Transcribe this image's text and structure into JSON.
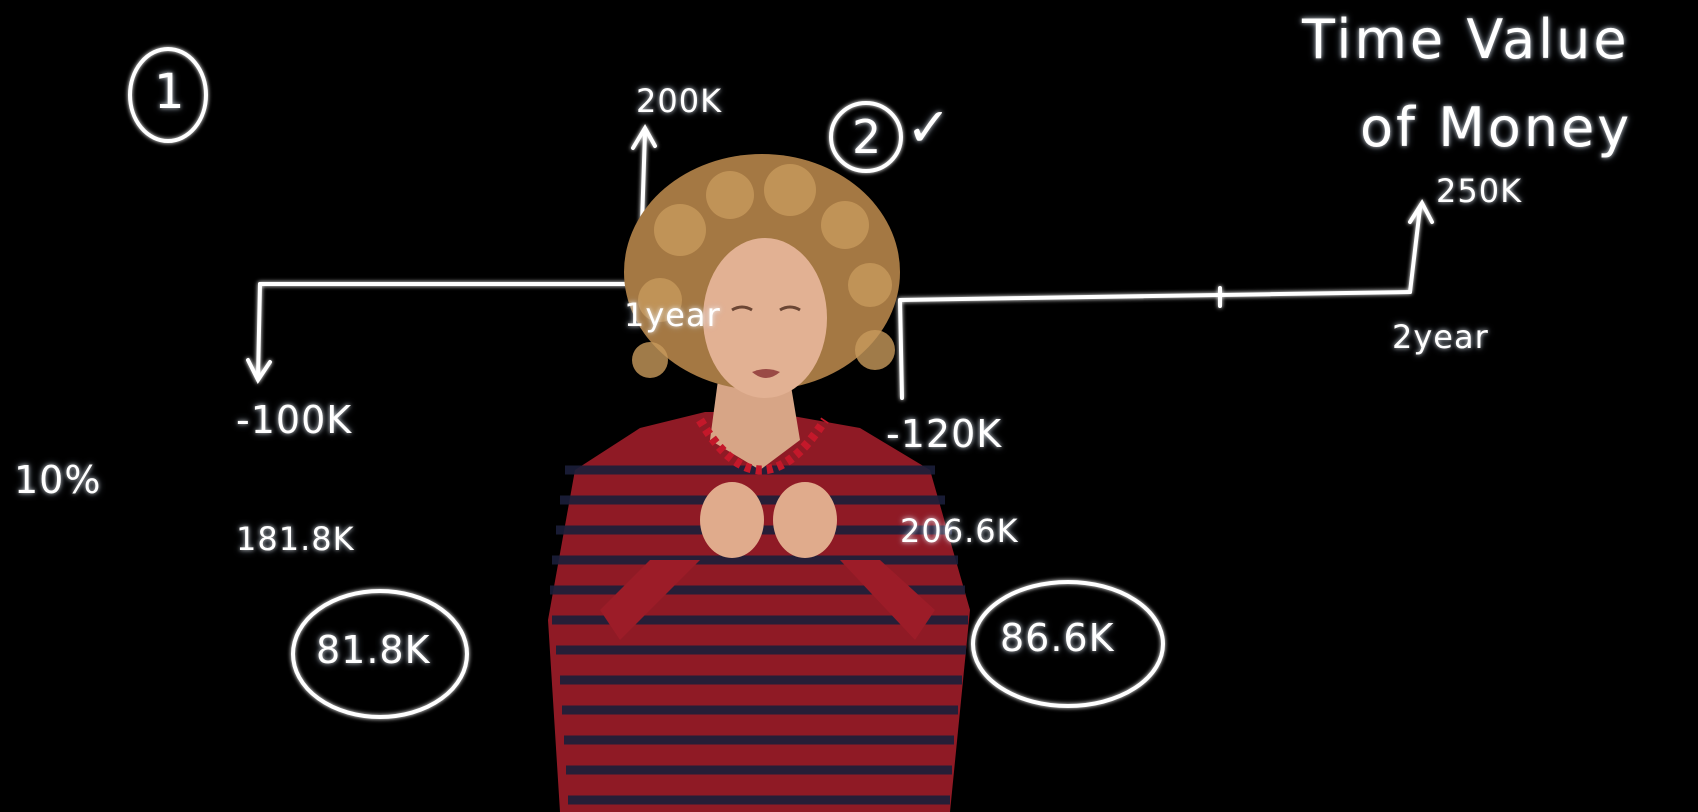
{
  "board": {
    "title_line1": "Time Value",
    "title_line2": "of Money",
    "option1_label": "1",
    "option2_label": "2",
    "option2_check": "✓",
    "rate": "10%",
    "timeline1": {
      "inflow": "200K",
      "outflow": "-100K",
      "period": "1year",
      "pv_inflow": "181.8K",
      "npv": "81.8K"
    },
    "timeline2": {
      "inflow": "250K",
      "outflow": "-120K",
      "period": "2year",
      "pv_inflow": "206.6K",
      "npv": "86.6K"
    }
  },
  "colors": {
    "background": "#000000",
    "ink": "#ffffff",
    "glow": "#bcd8ff",
    "shirt_red": "#b51d2b",
    "shirt_navy": "#1b1f3a",
    "hair": "#b98a4e",
    "skin": "#e2b193"
  }
}
